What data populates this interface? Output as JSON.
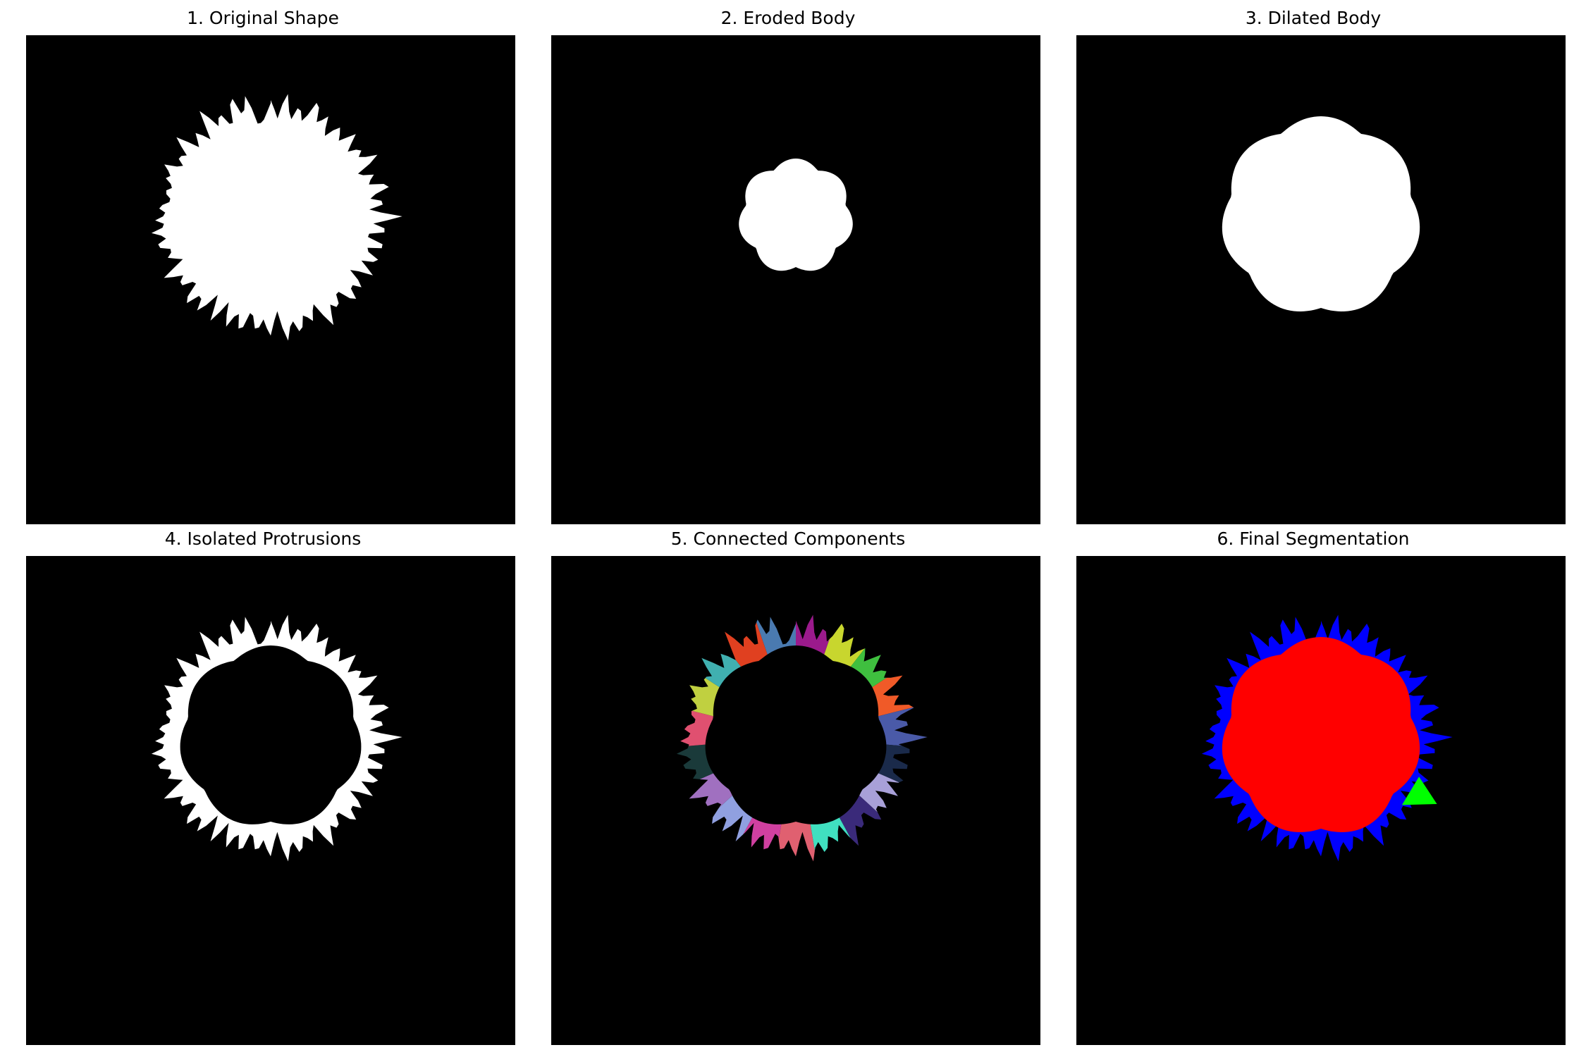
{
  "figure": {
    "panels": [
      {
        "id": "original",
        "title": "1. Original Shape"
      },
      {
        "id": "eroded",
        "title": "2. Eroded Body"
      },
      {
        "id": "dilated",
        "title": "3. Dilated Body"
      },
      {
        "id": "protrusions",
        "title": "4. Isolated Protrusions"
      },
      {
        "id": "components",
        "title": "5. Connected Components"
      },
      {
        "id": "segmentation",
        "title": "6. Final Segmentation"
      }
    ]
  },
  "colors": {
    "background": "#000000",
    "foreground": "#ffffff",
    "body_segment": "#ff0000",
    "protrusion_segment": "#0000ff",
    "highlight_segment": "#00ff00",
    "component_palette": [
      "#9b1a8c",
      "#c8d62e",
      "#3fbf3f",
      "#f05a28",
      "#4a5aa8",
      "#1a2a4a",
      "#a8a0d8",
      "#3a2a7a",
      "#40e0c0",
      "#e06070",
      "#d040a0",
      "#90a0e0",
      "#a070c0",
      "#1a3a3a",
      "#e05070",
      "#c0d040",
      "#40b0b0",
      "#e04020",
      "#4a7ab0"
    ]
  }
}
